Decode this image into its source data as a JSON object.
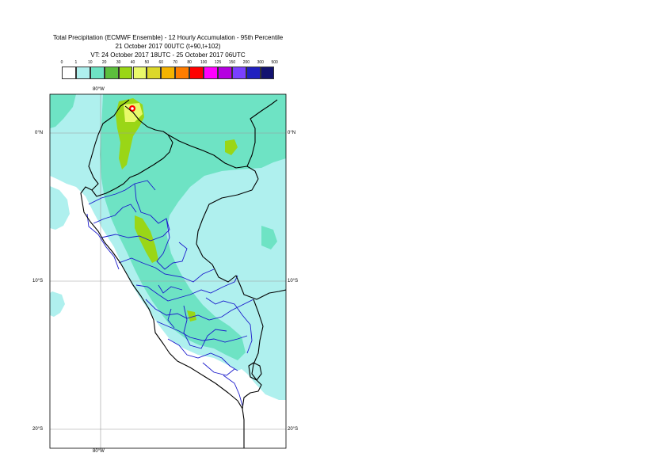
{
  "title": {
    "line1": "Total Precipitation (ECMWF Ensemble) - 12 Hourly Accumulation - 95th Percentile",
    "line2": "21 October 2017 00UTC (t+90,t+102)",
    "line3": "VT: 24 October 2017 18UTC - 25 October 2017 06UTC"
  },
  "legend": {
    "thresholds": [
      "0",
      "1",
      "10",
      "20",
      "30",
      "40",
      "50",
      "60",
      "70",
      "80",
      "100",
      "125",
      "150",
      "200",
      "300",
      "500"
    ],
    "colors": [
      "#ffffff",
      "#aff0ee",
      "#6ee3c4",
      "#5cbf3c",
      "#9ad616",
      "#e9f96a",
      "#dcd82a",
      "#f5b300",
      "#ff7d00",
      "#ff0000",
      "#ff00ff",
      "#b500e0",
      "#7a40ff",
      "#2020c0",
      "#121270"
    ]
  },
  "axes": {
    "lon_top": "80°W",
    "lon_bottom": "80°W",
    "lat_left": [
      "0°N",
      "10°S",
      "20°S"
    ],
    "lat_right": [
      "0°N",
      "10°S",
      "20°S"
    ]
  },
  "map": {
    "region": "Peru and surroundings",
    "boundary_colors": {
      "country": "#000000",
      "admin": "#1a1acc",
      "grid": "#9a9a9a"
    },
    "fill_colors": {
      "light": "#aff0ee",
      "medium": "#6ee3c4",
      "heavy": "#9ad616",
      "extreme": "#ff0000"
    }
  }
}
